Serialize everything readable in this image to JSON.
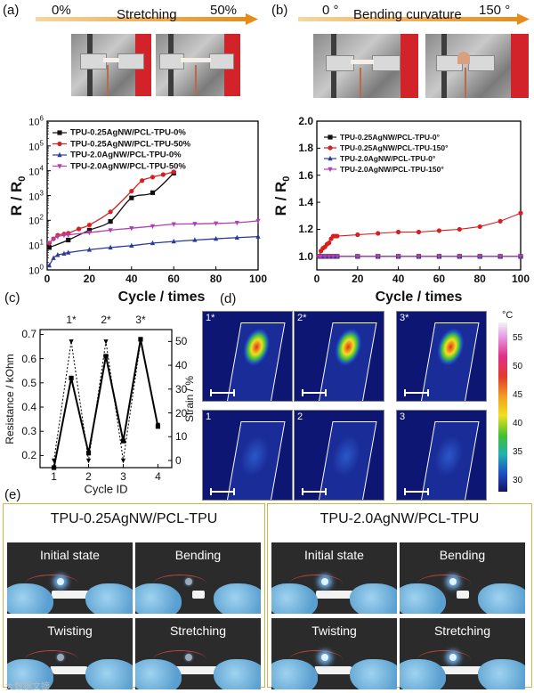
{
  "panels": {
    "a": {
      "label": "(a)",
      "arrow_left": "0%",
      "arrow_title": "Stretching",
      "arrow_right": "50%"
    },
    "b": {
      "label": "(b)",
      "arrow_left": "0 °",
      "arrow_title": "Bending curvature",
      "arrow_right": "150 °"
    },
    "c": {
      "label": "(c)"
    },
    "d": {
      "label": "(d)"
    },
    "e": {
      "label": "(e)"
    }
  },
  "chart_data": [
    {
      "id": "a",
      "type": "line",
      "xlabel": "Cycle / times",
      "ylabel": "R / R0",
      "ylabel_main": "R / R",
      "ylabel_sub": "0",
      "xlim": [
        0,
        100
      ],
      "ylim": [
        1,
        1000000
      ],
      "yscale": "log",
      "xticks": [
        0,
        20,
        40,
        60,
        80,
        100
      ],
      "ytick_labels": [
        {
          "v": 1,
          "base": "10",
          "exp": "0"
        },
        {
          "v": 10,
          "base": "10",
          "exp": "1"
        },
        {
          "v": 100,
          "base": "10",
          "exp": "2"
        },
        {
          "v": 1000,
          "base": "10",
          "exp": "3"
        },
        {
          "v": 10000,
          "base": "10",
          "exp": "4"
        },
        {
          "v": 100000,
          "base": "10",
          "exp": "5"
        },
        {
          "v": 1000000,
          "base": "10",
          "exp": "6"
        }
      ],
      "series": [
        {
          "name": "TPU-0.25AgNW/PCL-TPU-0%",
          "color": "#111111",
          "marker": "square",
          "x": [
            1,
            10,
            20,
            30,
            40,
            50,
            60
          ],
          "y": [
            8,
            16,
            40,
            90,
            800,
            1300,
            8000
          ]
        },
        {
          "name": "TPU-0.25AgNW/PCL-TPU-50%",
          "color": "#d62020",
          "marker": "circle",
          "x": [
            1,
            3,
            5,
            8,
            10,
            15,
            20,
            30,
            40,
            45,
            50,
            55,
            60
          ],
          "y": [
            12,
            18,
            25,
            28,
            30,
            45,
            65,
            220,
            1500,
            4000,
            5500,
            7000,
            9000
          ]
        },
        {
          "name": "TPU-2.0AgNW/PCL-TPU-0%",
          "color": "#2a3a9c",
          "marker": "triangle-up",
          "x": [
            1,
            3,
            5,
            8,
            10,
            20,
            30,
            40,
            50,
            60,
            70,
            80,
            90,
            100
          ],
          "y": [
            1.5,
            3,
            4,
            4.5,
            5,
            6.5,
            8,
            9.5,
            12,
            14,
            16,
            18,
            20,
            22
          ]
        },
        {
          "name": "TPU-2.0AgNW/PCL-TPU-50%",
          "color": "#b040b0",
          "marker": "triangle-down",
          "x": [
            1,
            3,
            5,
            8,
            10,
            20,
            30,
            40,
            50,
            60,
            70,
            80,
            90,
            100
          ],
          "y": [
            12,
            18,
            22,
            25,
            26,
            32,
            40,
            48,
            58,
            70,
            72,
            75,
            80,
            95
          ]
        }
      ]
    },
    {
      "id": "b",
      "type": "line",
      "xlabel": "Cycle / times",
      "ylabel": "R / R0",
      "ylabel_main": "R / R",
      "ylabel_sub": "0",
      "xlim": [
        0,
        100
      ],
      "ylim": [
        0.9,
        2.0
      ],
      "xticks": [
        0,
        20,
        40,
        60,
        80,
        100
      ],
      "yticks": [
        1.0,
        1.2,
        1.4,
        1.6,
        1.8,
        2.0
      ],
      "ytick_labels": [
        "1.0",
        "1.2",
        "1.4",
        "1.6",
        "1.8",
        "2.0"
      ],
      "series": [
        {
          "name": "TPU-0.25AgNW/PCL-TPU-0°",
          "color": "#111111",
          "marker": "square",
          "x": [
            1,
            2,
            4,
            6,
            8,
            10,
            20,
            30,
            40,
            50,
            60,
            70,
            80,
            90,
            100
          ],
          "y": [
            1.0,
            1.0,
            1.0,
            1.0,
            1.0,
            1.0,
            1.0,
            1.0,
            1.0,
            1.0,
            1.0,
            1.0,
            1.0,
            1.0,
            1.0
          ]
        },
        {
          "name": "TPU-0.25AgNW/PCL-TPU-150°",
          "color": "#d62020",
          "marker": "circle",
          "x": [
            1,
            2,
            3,
            4,
            5,
            6,
            7,
            8,
            9,
            10,
            20,
            30,
            40,
            50,
            60,
            70,
            80,
            90,
            100
          ],
          "y": [
            1.0,
            1.04,
            1.06,
            1.07,
            1.09,
            1.1,
            1.13,
            1.15,
            1.15,
            1.15,
            1.16,
            1.17,
            1.18,
            1.18,
            1.19,
            1.2,
            1.22,
            1.26,
            1.32
          ]
        },
        {
          "name": "TPU-2.0AgNW/PCL-TPU-0°",
          "color": "#2a3a9c",
          "marker": "triangle-up",
          "x": [
            1,
            2,
            4,
            6,
            8,
            10,
            20,
            30,
            40,
            50,
            60,
            70,
            80,
            90,
            100
          ],
          "y": [
            1.0,
            1.0,
            1.0,
            1.0,
            1.0,
            1.0,
            1.0,
            1.0,
            1.0,
            1.0,
            1.0,
            1.0,
            1.0,
            1.0,
            1.0
          ]
        },
        {
          "name": "TPU-2.0AgNW/PCL-TPU-150°",
          "color": "#b040b0",
          "marker": "triangle-down",
          "x": [
            1,
            2,
            4,
            6,
            8,
            10,
            20,
            30,
            40,
            50,
            60,
            70,
            80,
            90,
            100
          ],
          "y": [
            1.0,
            1.0,
            1.0,
            1.0,
            1.0,
            1.0,
            1.0,
            1.0,
            1.0,
            1.0,
            1.0,
            1.0,
            1.0,
            1.0,
            1.0
          ]
        }
      ]
    },
    {
      "id": "c",
      "type": "line",
      "xlabel": "Cycle ID",
      "ylabel_left": "Resistance / kOhm",
      "ylabel_right": "Strain / %",
      "xlim": [
        0.6,
        4.4
      ],
      "ylim_left": [
        0.15,
        0.72
      ],
      "ylim_right": [
        -3,
        55
      ],
      "xticks": [
        1,
        2,
        3,
        4
      ],
      "yticks_left": [
        0.2,
        0.3,
        0.4,
        0.5,
        0.6,
        0.7
      ],
      "yticks_right": [
        0,
        10,
        20,
        30,
        40,
        50
      ],
      "peak_labels": [
        {
          "x": 1.5,
          "text": "1*"
        },
        {
          "x": 2.5,
          "text": "2*"
        },
        {
          "x": 3.5,
          "text": "3*"
        }
      ],
      "resistance": {
        "x": [
          1,
          1.5,
          2,
          2.5,
          3,
          3.5,
          4
        ],
        "y": [
          0.15,
          0.52,
          0.21,
          0.61,
          0.26,
          0.68,
          0.32
        ]
      },
      "strain": {
        "x": [
          1,
          1.5,
          2,
          2.5,
          3,
          3.5,
          4
        ],
        "y": [
          0,
          50,
          0,
          50,
          0,
          50,
          15
        ]
      }
    }
  ],
  "thermal": {
    "unit": "°C",
    "colorbar_ticks": [
      "55",
      "50",
      "45",
      "40",
      "35",
      "30"
    ],
    "images": [
      {
        "label": "1*",
        "hot": true
      },
      {
        "label": "2*",
        "hot": true
      },
      {
        "label": "3*",
        "hot": true
      },
      {
        "label": "1",
        "hot": false
      },
      {
        "label": "2",
        "hot": false
      },
      {
        "label": "3",
        "hot": false
      }
    ]
  },
  "demo": {
    "left_title": "TPU-0.25AgNW/PCL-TPU",
    "right_title": "TPU-2.0AgNW/PCL-TPU",
    "captions": [
      "Initial state",
      "Bending",
      "Twisting",
      "Stretching"
    ]
  },
  "watermark": "大数据文摘"
}
